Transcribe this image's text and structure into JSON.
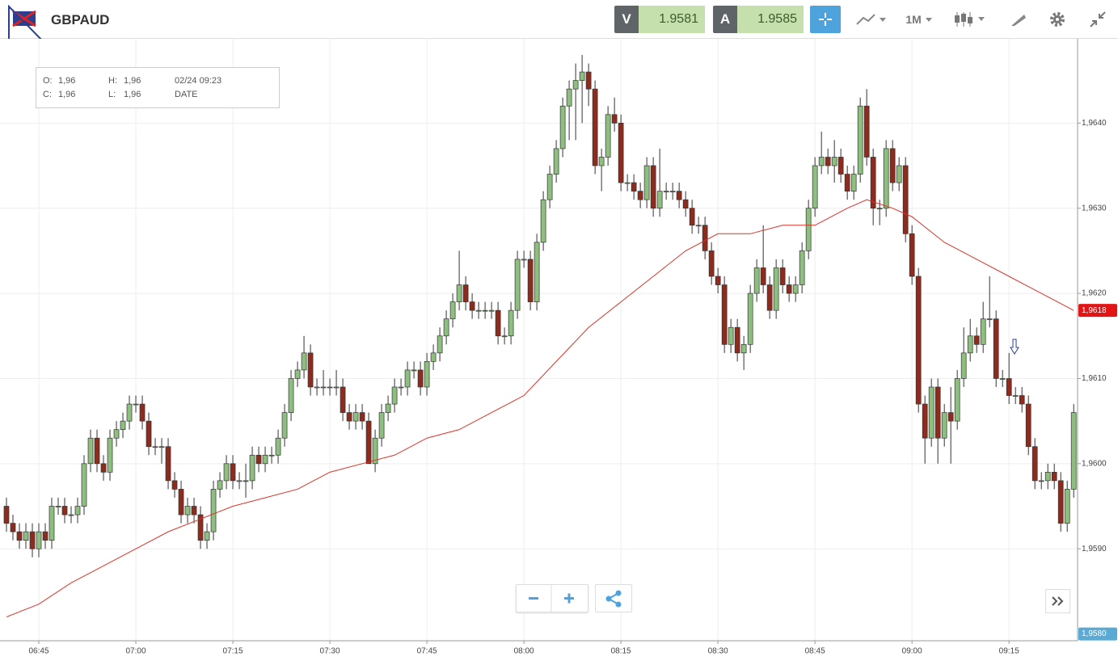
{
  "header": {
    "symbol": "GBPAUD",
    "bid_label": "V",
    "bid": "1.9581",
    "ask_label": "A",
    "ask": "1.9585",
    "interval": "1M"
  },
  "info": {
    "open_label": "O:",
    "open": "1,96",
    "high_label": "H:",
    "high": "1,96",
    "time": "02/24 09:23",
    "close_label": "C:",
    "close": "1,96",
    "low_label": "L:",
    "low": "1,96",
    "date_label": "DATE"
  },
  "chart_data": {
    "type": "candlestick",
    "up_color": "#8fbf80",
    "down_color": "#8b2c1f",
    "grid": true,
    "open": [
      1.9595,
      1.9593,
      1.9592,
      1.9591,
      1.9592,
      1.959,
      1.9592,
      1.9591,
      1.9595,
      1.9595,
      1.9594,
      1.9594,
      1.9595,
      1.96,
      1.9603,
      1.96,
      1.9599,
      1.9603,
      1.9604,
      1.9605,
      1.9607,
      1.9607,
      1.9605,
      1.9602,
      1.9602,
      1.9602,
      1.9598,
      1.9597,
      1.9594,
      1.9595,
      1.9594,
      1.9591,
      1.9592,
      1.9597,
      1.9598,
      1.96,
      1.9598,
      1.9598,
      1.9598,
      1.9601,
      1.96,
      1.9601,
      1.9601,
      1.9603,
      1.9606,
      1.961,
      1.9611,
      1.9613,
      1.9609,
      1.9609,
      1.9609,
      1.9609,
      1.9609,
      1.9606,
      1.9605,
      1.9606,
      1.9605,
      1.96,
      1.9603,
      1.9606,
      1.9607,
      1.9609,
      1.9609,
      1.9611,
      1.9611,
      1.9609,
      1.9612,
      1.9613,
      1.9615,
      1.9617,
      1.9619,
      1.9621,
      1.9619,
      1.9618,
      1.9618,
      1.9618,
      1.9618,
      1.9615,
      1.9615,
      1.9618,
      1.9624,
      1.9624,
      1.9619,
      1.9626,
      1.9631,
      1.9634,
      1.9637,
      1.9642,
      1.9644,
      1.9645,
      1.9646,
      1.9644,
      1.9635,
      1.9636,
      1.9641,
      1.964,
      1.9633,
      1.9633,
      1.9632,
      1.9631,
      1.9635,
      1.963,
      1.9632,
      1.9632,
      1.9632,
      1.9631,
      1.963,
      1.9628,
      1.9628,
      1.9625,
      1.9622,
      1.9621,
      1.9614,
      1.9616,
      1.9613,
      1.9614,
      1.962,
      1.9623,
      1.9621,
      1.9618,
      1.9623,
      1.9621,
      1.962,
      1.9621,
      1.9625,
      1.963,
      1.9635,
      1.9636,
      1.9635,
      1.9636,
      1.9634,
      1.9632,
      1.9634,
      1.9642,
      1.9636,
      1.963,
      1.963,
      1.9637,
      1.9633,
      1.9635,
      1.9627,
      1.9622,
      1.9607,
      1.9603,
      1.9609,
      1.9603,
      1.9606,
      1.9605,
      1.961,
      1.9613,
      1.9615,
      1.9614,
      1.9617,
      1.9617,
      1.961,
      1.961,
      1.9608,
      1.9608,
      1.9607,
      1.9602,
      1.9598,
      1.9598,
      1.9599,
      1.9598,
      1.9593,
      1.9597
    ],
    "high": [
      1.9596,
      1.9594,
      1.9593,
      1.9593,
      1.9593,
      1.9593,
      1.9593,
      1.9596,
      1.9596,
      1.9596,
      1.9595,
      1.9596,
      1.9601,
      1.9604,
      1.9604,
      1.9601,
      1.9604,
      1.9605,
      1.9606,
      1.9608,
      1.9608,
      1.9608,
      1.9606,
      1.9603,
      1.9603,
      1.9603,
      1.9599,
      1.9598,
      1.9596,
      1.9596,
      1.9595,
      1.9593,
      1.9598,
      1.9599,
      1.9601,
      1.9601,
      1.9599,
      1.96,
      1.9602,
      1.9602,
      1.9602,
      1.9602,
      1.9604,
      1.9607,
      1.9611,
      1.9612,
      1.9615,
      1.9614,
      1.961,
      1.9611,
      1.961,
      1.9611,
      1.961,
      1.9607,
      1.9607,
      1.9607,
      1.9606,
      1.9604,
      1.9607,
      1.9608,
      1.961,
      1.961,
      1.9612,
      1.9612,
      1.9612,
      1.9613,
      1.9614,
      1.9616,
      1.9618,
      1.962,
      1.9625,
      1.9622,
      1.962,
      1.9619,
      1.9619,
      1.9619,
      1.9619,
      1.9616,
      1.9619,
      1.9625,
      1.9625,
      1.9625,
      1.9627,
      1.9632,
      1.9635,
      1.9638,
      1.9643,
      1.9645,
      1.9647,
      1.9648,
      1.9647,
      1.9645,
      1.9637,
      1.9642,
      1.9643,
      1.9641,
      1.9634,
      1.9634,
      1.9633,
      1.9636,
      1.9636,
      1.9637,
      1.9633,
      1.9633,
      1.9633,
      1.9632,
      1.9631,
      1.9629,
      1.9629,
      1.9626,
      1.9623,
      1.9622,
      1.9617,
      1.9617,
      1.9615,
      1.9621,
      1.9624,
      1.9628,
      1.9622,
      1.9624,
      1.9624,
      1.9622,
      1.9622,
      1.9626,
      1.9631,
      1.9636,
      1.9639,
      1.9637,
      1.9638,
      1.9637,
      1.9635,
      1.9635,
      1.9643,
      1.9644,
      1.9637,
      1.9631,
      1.9638,
      1.9638,
      1.9636,
      1.9636,
      1.9628,
      1.9623,
      1.9608,
      1.961,
      1.961,
      1.9607,
      1.9609,
      1.9611,
      1.9616,
      1.9617,
      1.9616,
      1.9619,
      1.9622,
      1.9618,
      1.9611,
      1.9613,
      1.9609,
      1.9609,
      1.9608,
      1.9603,
      1.9599,
      1.96,
      1.96,
      1.9599,
      1.9598,
      1.9607
    ],
    "low": [
      1.9592,
      1.9591,
      1.959,
      1.959,
      1.9589,
      1.9589,
      1.959,
      1.959,
      1.9594,
      1.9593,
      1.9593,
      1.9593,
      1.9594,
      1.9599,
      1.9599,
      1.9598,
      1.9598,
      1.9602,
      1.9603,
      1.9604,
      1.9606,
      1.9604,
      1.9601,
      1.9601,
      1.96,
      1.9597,
      1.9596,
      1.9593,
      1.9593,
      1.9593,
      1.959,
      1.959,
      1.9591,
      1.9596,
      1.9597,
      1.9597,
      1.9597,
      1.9596,
      1.9597,
      1.9599,
      1.9599,
      1.96,
      1.96,
      1.9602,
      1.9605,
      1.9609,
      1.961,
      1.9608,
      1.9608,
      1.9608,
      1.9608,
      1.9608,
      1.9605,
      1.9604,
      1.9604,
      1.9604,
      1.96,
      1.9599,
      1.9602,
      1.9605,
      1.9606,
      1.9608,
      1.9608,
      1.961,
      1.9608,
      1.9608,
      1.9611,
      1.9612,
      1.9614,
      1.9616,
      1.9618,
      1.9618,
      1.9617,
      1.9617,
      1.9617,
      1.9617,
      1.9614,
      1.9614,
      1.9614,
      1.9617,
      1.9623,
      1.9618,
      1.9618,
      1.9625,
      1.963,
      1.9633,
      1.9636,
      1.9638,
      1.9638,
      1.964,
      1.9642,
      1.9634,
      1.9632,
      1.9635,
      1.9639,
      1.9632,
      1.9632,
      1.9631,
      1.963,
      1.963,
      1.9629,
      1.9629,
      1.9631,
      1.9631,
      1.963,
      1.9629,
      1.9627,
      1.9627,
      1.9624,
      1.9621,
      1.962,
      1.9613,
      1.9613,
      1.9612,
      1.9611,
      1.9613,
      1.9619,
      1.962,
      1.9617,
      1.9617,
      1.962,
      1.9619,
      1.9619,
      1.962,
      1.9624,
      1.9629,
      1.9634,
      1.9634,
      1.9633,
      1.9633,
      1.9631,
      1.9631,
      1.9633,
      1.9635,
      1.9628,
      1.9628,
      1.9629,
      1.9632,
      1.9632,
      1.9626,
      1.9621,
      1.9606,
      1.96,
      1.9602,
      1.96,
      1.9602,
      1.96,
      1.9604,
      1.9609,
      1.9612,
      1.9613,
      1.9613,
      1.9616,
      1.9609,
      1.9609,
      1.9607,
      1.9607,
      1.9606,
      1.9601,
      1.9597,
      1.9597,
      1.9597,
      1.9597,
      1.9592,
      1.9592,
      1.9596
    ],
    "close": [
      1.9593,
      1.9592,
      1.9591,
      1.9592,
      1.959,
      1.9592,
      1.9591,
      1.9595,
      1.9595,
      1.9594,
      1.9594,
      1.9595,
      1.96,
      1.9603,
      1.96,
      1.9599,
      1.9603,
      1.9604,
      1.9605,
      1.9607,
      1.9607,
      1.9605,
      1.9602,
      1.9602,
      1.9602,
      1.9598,
      1.9597,
      1.9594,
      1.9595,
      1.9594,
      1.9591,
      1.9592,
      1.9597,
      1.9598,
      1.96,
      1.9598,
      1.9598,
      1.9598,
      1.9601,
      1.96,
      1.9601,
      1.9601,
      1.9603,
      1.9606,
      1.961,
      1.9611,
      1.9613,
      1.9609,
      1.9609,
      1.9609,
      1.9609,
      1.9609,
      1.9606,
      1.9605,
      1.9606,
      1.9605,
      1.96,
      1.9603,
      1.9606,
      1.9607,
      1.9609,
      1.9609,
      1.9611,
      1.9611,
      1.9609,
      1.9612,
      1.9613,
      1.9615,
      1.9617,
      1.9619,
      1.9621,
      1.9619,
      1.9618,
      1.9618,
      1.9618,
      1.9618,
      1.9615,
      1.9615,
      1.9618,
      1.9624,
      1.9624,
      1.9619,
      1.9626,
      1.9631,
      1.9634,
      1.9637,
      1.9642,
      1.9644,
      1.9645,
      1.9646,
      1.9644,
      1.9635,
      1.9636,
      1.9641,
      1.964,
      1.9633,
      1.9633,
      1.9632,
      1.9631,
      1.9635,
      1.963,
      1.9632,
      1.9632,
      1.9632,
      1.9631,
      1.963,
      1.9628,
      1.9628,
      1.9625,
      1.9622,
      1.9621,
      1.9614,
      1.9616,
      1.9613,
      1.9614,
      1.962,
      1.9623,
      1.9621,
      1.9618,
      1.9623,
      1.9621,
      1.962,
      1.9621,
      1.9625,
      1.963,
      1.9635,
      1.9636,
      1.9635,
      1.9636,
      1.9634,
      1.9632,
      1.9634,
      1.9642,
      1.9636,
      1.963,
      1.963,
      1.9637,
      1.9633,
      1.9635,
      1.9627,
      1.9622,
      1.9607,
      1.9603,
      1.9609,
      1.9603,
      1.9606,
      1.9605,
      1.961,
      1.9613,
      1.9615,
      1.9614,
      1.9617,
      1.9617,
      1.961,
      1.961,
      1.9608,
      1.9608,
      1.9607,
      1.9602,
      1.9598,
      1.9598,
      1.9599,
      1.9598,
      1.9593,
      1.9597,
      1.9606
    ],
    "ma": {
      "color": "#d9342b",
      "x": [
        0,
        5,
        10,
        15,
        20,
        25,
        30,
        35,
        40,
        45,
        50,
        55,
        60,
        65,
        70,
        75,
        80,
        85,
        90,
        95,
        100,
        105,
        110,
        115,
        120,
        125,
        130,
        133,
        137,
        140,
        145,
        150,
        155,
        160,
        165
      ],
      "values": [
        1.9582,
        1.95835,
        1.9586,
        1.9588,
        1.959,
        1.9592,
        1.95935,
        1.9595,
        1.9596,
        1.9597,
        1.9599,
        1.96,
        1.9601,
        1.9603,
        1.9604,
        1.9606,
        1.9608,
        1.9612,
        1.9616,
        1.9619,
        1.9622,
        1.9625,
        1.9627,
        1.9627,
        1.9628,
        1.9628,
        1.963,
        1.9631,
        1.963,
        1.9629,
        1.9626,
        1.9624,
        1.9622,
        1.962,
        1.9618
      ]
    },
    "xlim": [
      -1,
      165.6
    ],
    "xticks": [
      {
        "value": 5,
        "label": "06:45"
      },
      {
        "value": 20,
        "label": "07:00"
      },
      {
        "value": 35,
        "label": "07:15"
      },
      {
        "value": 50,
        "label": "07:30"
      },
      {
        "value": 65,
        "label": "07:45"
      },
      {
        "value": 80,
        "label": "08:00"
      },
      {
        "value": 95,
        "label": "08:15"
      },
      {
        "value": 110,
        "label": "08:30"
      },
      {
        "value": 125,
        "label": "08:45"
      },
      {
        "value": 140,
        "label": "09:00"
      },
      {
        "value": 155,
        "label": "09:15"
      }
    ],
    "ylim": [
      1.95792,
      1.96499
    ],
    "yticks": [
      {
        "value": 1.959,
        "label": "1,9590"
      },
      {
        "value": 1.96,
        "label": "1,9600"
      },
      {
        "value": 1.961,
        "label": "1,9610"
      },
      {
        "value": 1.962,
        "label": "1,9620"
      },
      {
        "value": 1.963,
        "label": "1,9630"
      },
      {
        "value": 1.964,
        "label": "1,9640"
      }
    ],
    "price_markers": [
      {
        "value": 1.9618,
        "label": "1,9618",
        "color": "#e31414"
      },
      {
        "value": 1.958,
        "label": "1,9580",
        "color": "#5aaad6"
      }
    ]
  }
}
